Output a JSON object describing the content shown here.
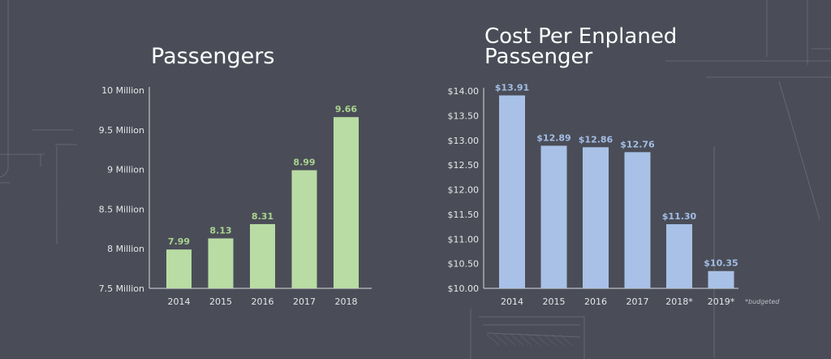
{
  "colors": {
    "background": "#4a4d57",
    "passengers_bar": "#b9dca4",
    "passengers_label": "#a9d48f",
    "cost_bar": "#a9c1e6",
    "cost_label": "#a3bde6",
    "axis": "#d9dadd"
  },
  "chart_data": [
    {
      "type": "bar",
      "title": "Passengers",
      "categories": [
        "2014",
        "2015",
        "2016",
        "2017",
        "2018"
      ],
      "values": [
        7.99,
        8.13,
        8.31,
        8.99,
        9.66
      ],
      "data_labels": [
        "7.99",
        "8.13",
        "8.31",
        "8.99",
        "9.66"
      ],
      "yticks": [
        {
          "value": 7.5,
          "label": "7.5 Million"
        },
        {
          "value": 8,
          "label": "8 Million"
        },
        {
          "value": 8.5,
          "label": "8.5 Million"
        },
        {
          "value": 9,
          "label": "9 Million"
        },
        {
          "value": 9.5,
          "label": "9.5 Million"
        },
        {
          "value": 10,
          "label": "10 Million"
        }
      ],
      "ylim": [
        7.5,
        10
      ],
      "grid": false
    },
    {
      "type": "bar",
      "title": "Cost Per Enplaned Passenger",
      "categories": [
        "2014",
        "2015",
        "2016",
        "2017",
        "2018*",
        "2019*"
      ],
      "values": [
        13.91,
        12.89,
        12.86,
        12.76,
        11.3,
        10.35
      ],
      "data_labels": [
        "$13.91",
        "$12.89",
        "$12.86",
        "$12.76",
        "$11.30",
        "$10.35"
      ],
      "yticks": [
        {
          "value": 10.0,
          "label": "$10.00"
        },
        {
          "value": 10.5,
          "label": "$10.50"
        },
        {
          "value": 11.0,
          "label": "$11.00"
        },
        {
          "value": 11.5,
          "label": "$11.50"
        },
        {
          "value": 12.0,
          "label": "$12.00"
        },
        {
          "value": 12.5,
          "label": "$12.50"
        },
        {
          "value": 13.0,
          "label": "$13.00"
        },
        {
          "value": 13.5,
          "label": "$13.50"
        },
        {
          "value": 14.0,
          "label": "$14.00"
        }
      ],
      "ylim": [
        10,
        14
      ],
      "grid": false,
      "footnote": "*budgeted"
    }
  ]
}
